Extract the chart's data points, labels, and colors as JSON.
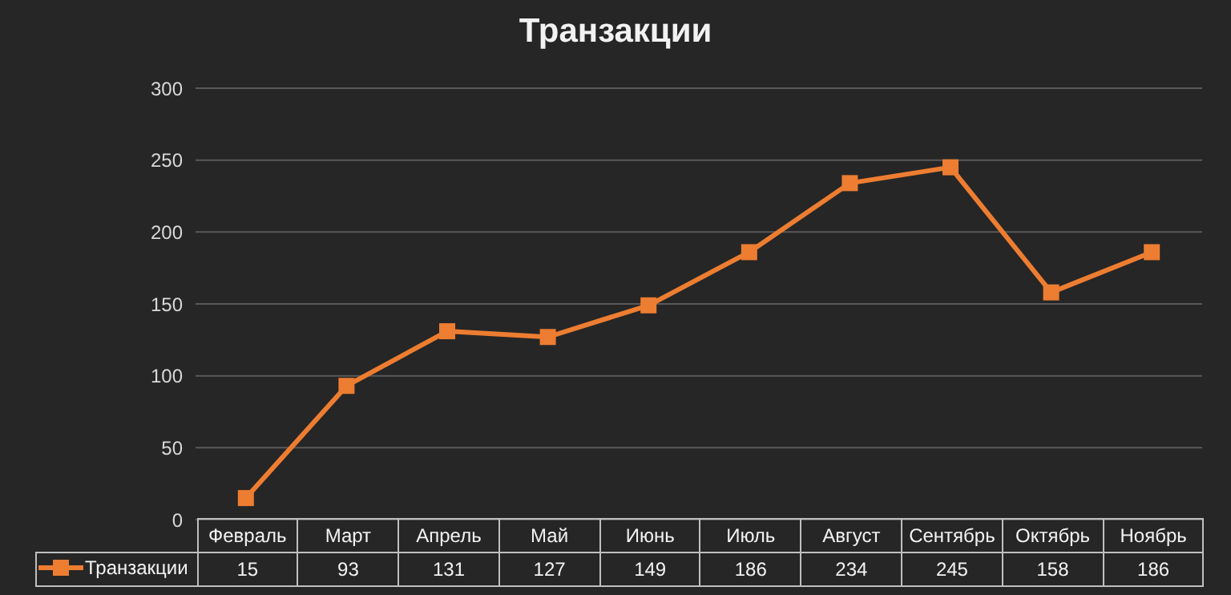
{
  "chart_data": {
    "type": "line",
    "title": "Транзакции",
    "categories": [
      "Февраль",
      "Март",
      "Апрель",
      "Май",
      "Июнь",
      "Июль",
      "Август",
      "Сентябрь",
      "Октябрь",
      "Ноябрь"
    ],
    "series": [
      {
        "name": "Транзакции",
        "color": "#ed7d31",
        "values": [
          15,
          93,
          131,
          127,
          149,
          186,
          234,
          245,
          158,
          186
        ]
      }
    ],
    "ylim": [
      0,
      300
    ],
    "yticks": [
      0,
      50,
      100,
      150,
      200,
      250,
      300
    ],
    "grid": "y",
    "legend": "bottom",
    "marker": "square",
    "line_style": "solid",
    "data_labels": true
  }
}
